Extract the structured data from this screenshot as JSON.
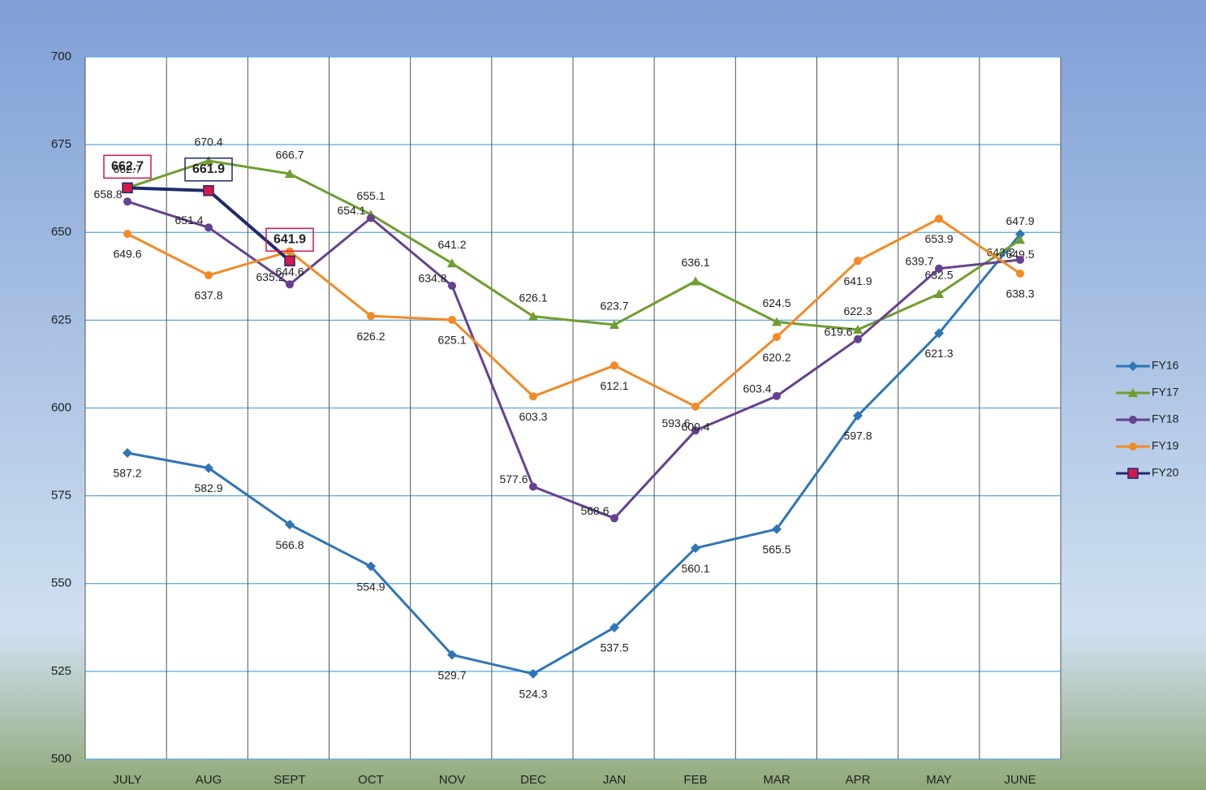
{
  "chart_data": {
    "type": "line",
    "categories": [
      "JULY",
      "AUG",
      "SEPT",
      "OCT",
      "NOV",
      "DEC",
      "JAN",
      "FEB",
      "MAR",
      "APR",
      "MAY",
      "JUNE"
    ],
    "series": [
      {
        "name": "FY16",
        "color": "#2e75b6",
        "marker": "diamond",
        "values": [
          587.2,
          582.9,
          566.8,
          554.9,
          529.7,
          524.3,
          537.5,
          560.1,
          565.5,
          597.8,
          621.3,
          649.5
        ]
      },
      {
        "name": "FY17",
        "color": "#6f9e2e",
        "marker": "triangle",
        "values": [
          662.7,
          670.4,
          666.7,
          655.1,
          641.2,
          626.1,
          623.7,
          636.1,
          624.5,
          622.3,
          632.5,
          647.9
        ]
      },
      {
        "name": "FY18",
        "color": "#65418f",
        "marker": "circle",
        "values": [
          658.8,
          651.4,
          635.2,
          654.1,
          634.8,
          577.6,
          568.6,
          593.6,
          603.4,
          619.6,
          639.7,
          642.2
        ]
      },
      {
        "name": "FY19",
        "color": "#f28a26",
        "marker": "circle",
        "values": [
          649.6,
          637.8,
          644.6,
          626.2,
          625.1,
          603.3,
          612.1,
          600.4,
          620.2,
          641.9,
          653.9,
          638.3
        ]
      },
      {
        "name": "FY20",
        "color": "#1f2a6b",
        "marker": "square",
        "values": [
          662.7,
          661.9,
          641.9,
          null,
          null,
          null,
          null,
          null,
          null,
          null,
          null,
          null
        ]
      }
    ],
    "ylim": [
      500,
      700
    ],
    "yticks": [
      500,
      525,
      550,
      575,
      600,
      625,
      650,
      675,
      700
    ],
    "grid": true,
    "legend": "right"
  }
}
